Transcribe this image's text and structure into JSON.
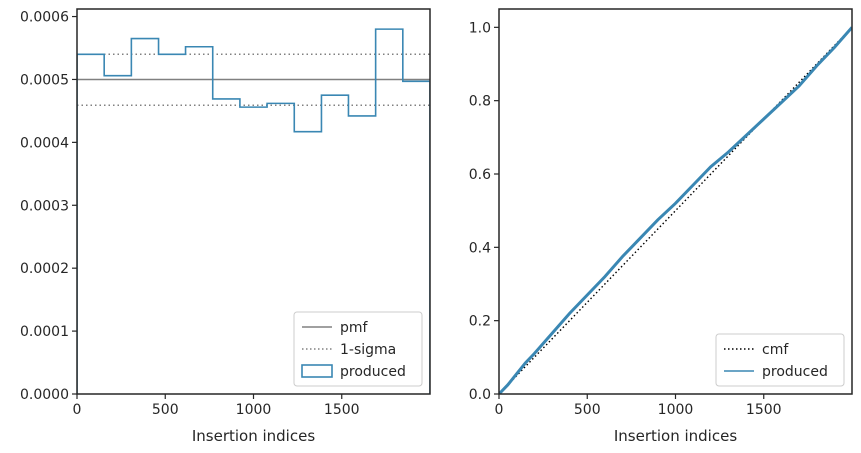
{
  "chart_data": [
    {
      "type": "histogram-step",
      "xlabel": "Insertion indices",
      "ylabel": "",
      "xlim": [
        0,
        2000
      ],
      "ylim": [
        0,
        0.000612
      ],
      "xticks": [
        0,
        500,
        1000,
        1500
      ],
      "xtick_labels": [
        "0",
        "500",
        "1000",
        "1500"
      ],
      "yticks": [
        0,
        0.0001,
        0.0002,
        0.0003,
        0.0004,
        0.0005,
        0.0006
      ],
      "ytick_labels": [
        "0.0000",
        "0.0001",
        "0.0002",
        "0.0003",
        "0.0004",
        "0.0005",
        "0.0006"
      ],
      "grid": false,
      "legend_position": "bottom-right",
      "pmf": 0.0005,
      "sigma_band": [
        0.000459,
        0.00054
      ],
      "bin_edges": [
        0,
        154,
        308,
        462,
        615,
        769,
        923,
        1077,
        1231,
        1385,
        1538,
        1692,
        1846,
        2000
      ],
      "values": [
        0.00054,
        0.000506,
        0.000565,
        0.00054,
        0.000552,
        0.000469,
        0.000456,
        0.000462,
        0.000417,
        0.000475,
        0.000442,
        0.00058,
        0.000497
      ],
      "series": [
        {
          "name": "pmf",
          "color": "#808080",
          "style": "solid"
        },
        {
          "name": "1-sigma",
          "color": "#808080",
          "style": "dotted"
        },
        {
          "name": "produced",
          "color": "#3a87b3",
          "style": "step"
        }
      ]
    },
    {
      "type": "line",
      "xlabel": "Insertion indices",
      "ylabel": "",
      "xlim": [
        0,
        2000
      ],
      "ylim": [
        0,
        1.05
      ],
      "xticks": [
        0,
        500,
        1000,
        1500
      ],
      "xtick_labels": [
        "0",
        "500",
        "1000",
        "1500"
      ],
      "yticks": [
        0,
        0.2,
        0.4,
        0.6,
        0.8,
        1.0
      ],
      "ytick_labels": [
        "0.0",
        "0.2",
        "0.4",
        "0.6",
        "0.8",
        "1.0"
      ],
      "grid": false,
      "legend_position": "bottom-right",
      "series": [
        {
          "name": "cmf",
          "color": "#000000",
          "style": "dotted",
          "x": [
            0,
            2000
          ],
          "y": [
            0,
            1.0
          ]
        },
        {
          "name": "produced",
          "color": "#3a87b3",
          "style": "solid",
          "x": [
            0,
            50,
            100,
            150,
            200,
            300,
            400,
            500,
            600,
            700,
            800,
            900,
            1000,
            1100,
            1200,
            1300,
            1400,
            1500,
            1600,
            1700,
            1800,
            1900,
            2000
          ],
          "y": [
            0,
            0.025,
            0.055,
            0.085,
            0.11,
            0.165,
            0.22,
            0.27,
            0.32,
            0.375,
            0.425,
            0.475,
            0.52,
            0.57,
            0.62,
            0.66,
            0.705,
            0.75,
            0.795,
            0.84,
            0.895,
            0.945,
            1.0
          ]
        }
      ]
    }
  ]
}
